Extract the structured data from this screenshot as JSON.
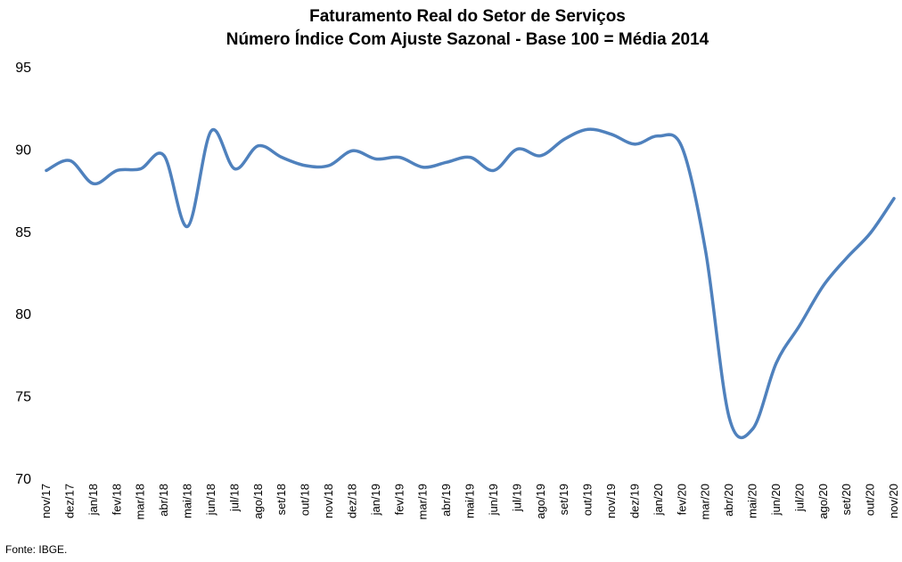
{
  "chart_data": {
    "type": "line",
    "title": "Faturamento Real do Setor de Serviços",
    "subtitle": "Número Índice Com Ajuste Sazonal - Base 100 = Média 2014",
    "xlabel": "",
    "ylabel": "",
    "ylim": [
      70,
      95
    ],
    "yticks": [
      70,
      75,
      80,
      85,
      90,
      95
    ],
    "grid": false,
    "legend": "none",
    "x": [
      "nov/17",
      "dez/17",
      "jan/18",
      "fev/18",
      "mar/18",
      "abr/18",
      "mai/18",
      "jun/18",
      "jul/18",
      "ago/18",
      "set/18",
      "out/18",
      "nov/18",
      "dez/18",
      "jan/19",
      "fev/19",
      "mar/19",
      "abr/19",
      "mai/19",
      "jun/19",
      "jul/19",
      "ago/19",
      "set/19",
      "out/19",
      "nov/19",
      "dez/19",
      "jan/20",
      "fev/20",
      "mar/20",
      "abr/20",
      "mai/20",
      "jun/20",
      "jul/20",
      "ago/20",
      "set/20",
      "out/20",
      "nov/20"
    ],
    "series": [
      {
        "values": [
          88.7,
          89.3,
          87.9,
          88.7,
          88.8,
          89.6,
          85.3,
          91.1,
          88.8,
          90.2,
          89.5,
          89.0,
          89.0,
          89.9,
          89.4,
          89.5,
          88.9,
          89.2,
          89.5,
          88.7,
          90.0,
          89.6,
          90.6,
          91.2,
          90.9,
          90.3,
          90.8,
          90.1,
          83.8,
          73.7,
          73.0,
          77.0,
          79.3,
          81.7,
          83.4,
          84.9,
          87.0
        ],
        "color": "#4f81bd"
      }
    ]
  },
  "source": "Fonte: IBGE."
}
